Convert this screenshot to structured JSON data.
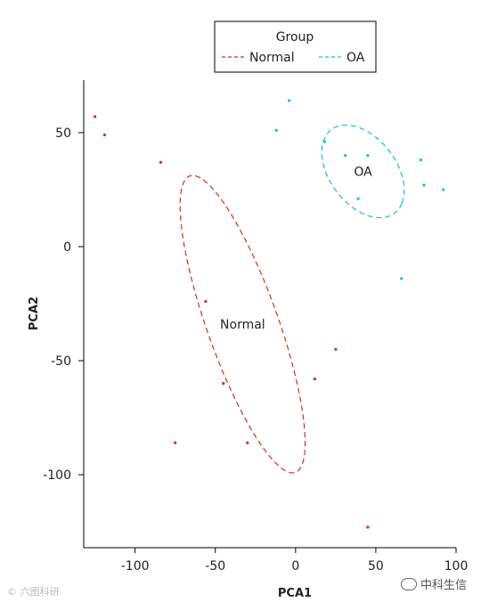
{
  "chart_data": {
    "type": "scatter",
    "xlabel": "PCA1",
    "ylabel": "PCA2",
    "xlim": [
      -132,
      100
    ],
    "ylim": [
      -132,
      73
    ],
    "xticks": [
      -100,
      -50,
      0,
      50,
      100
    ],
    "yticks": [
      50,
      0,
      -50,
      -100
    ],
    "grid": false,
    "legend": {
      "title": "Group",
      "placement": "top-center",
      "entries": [
        "Normal",
        "OA"
      ]
    },
    "series": [
      {
        "name": "Normal",
        "color": "#d62728",
        "label": "Normal",
        "ellipse": {
          "center": [
            -33,
            -34
          ],
          "semi_major": 73,
          "semi_minor": 21,
          "angle_deg": -62
        },
        "points": [
          {
            "x": -125,
            "y": 57
          },
          {
            "x": -119,
            "y": 49
          },
          {
            "x": -84,
            "y": 37
          },
          {
            "x": -56,
            "y": -24
          },
          {
            "x": -45,
            "y": -60
          },
          {
            "x": 25,
            "y": -45
          },
          {
            "x": 12,
            "y": -58
          },
          {
            "x": -75,
            "y": -86
          },
          {
            "x": -30,
            "y": -86
          },
          {
            "x": 45,
            "y": -123
          }
        ]
      },
      {
        "name": "OA",
        "color": "#17becf",
        "label": "OA",
        "ellipse": {
          "center": [
            42,
            33
          ],
          "semi_major": 28,
          "semi_minor": 17,
          "angle_deg": -30
        },
        "points": [
          {
            "x": -4,
            "y": 64
          },
          {
            "x": -12,
            "y": 51
          },
          {
            "x": 18,
            "y": 46
          },
          {
            "x": 31,
            "y": 40
          },
          {
            "x": 45,
            "y": 40
          },
          {
            "x": 78,
            "y": 38
          },
          {
            "x": 80,
            "y": 27
          },
          {
            "x": 92,
            "y": 25
          },
          {
            "x": 39,
            "y": 21
          },
          {
            "x": 66,
            "y": -14
          }
        ]
      }
    ]
  },
  "watermarks": {
    "left": "© 六图科研",
    "right": "中科生信"
  }
}
